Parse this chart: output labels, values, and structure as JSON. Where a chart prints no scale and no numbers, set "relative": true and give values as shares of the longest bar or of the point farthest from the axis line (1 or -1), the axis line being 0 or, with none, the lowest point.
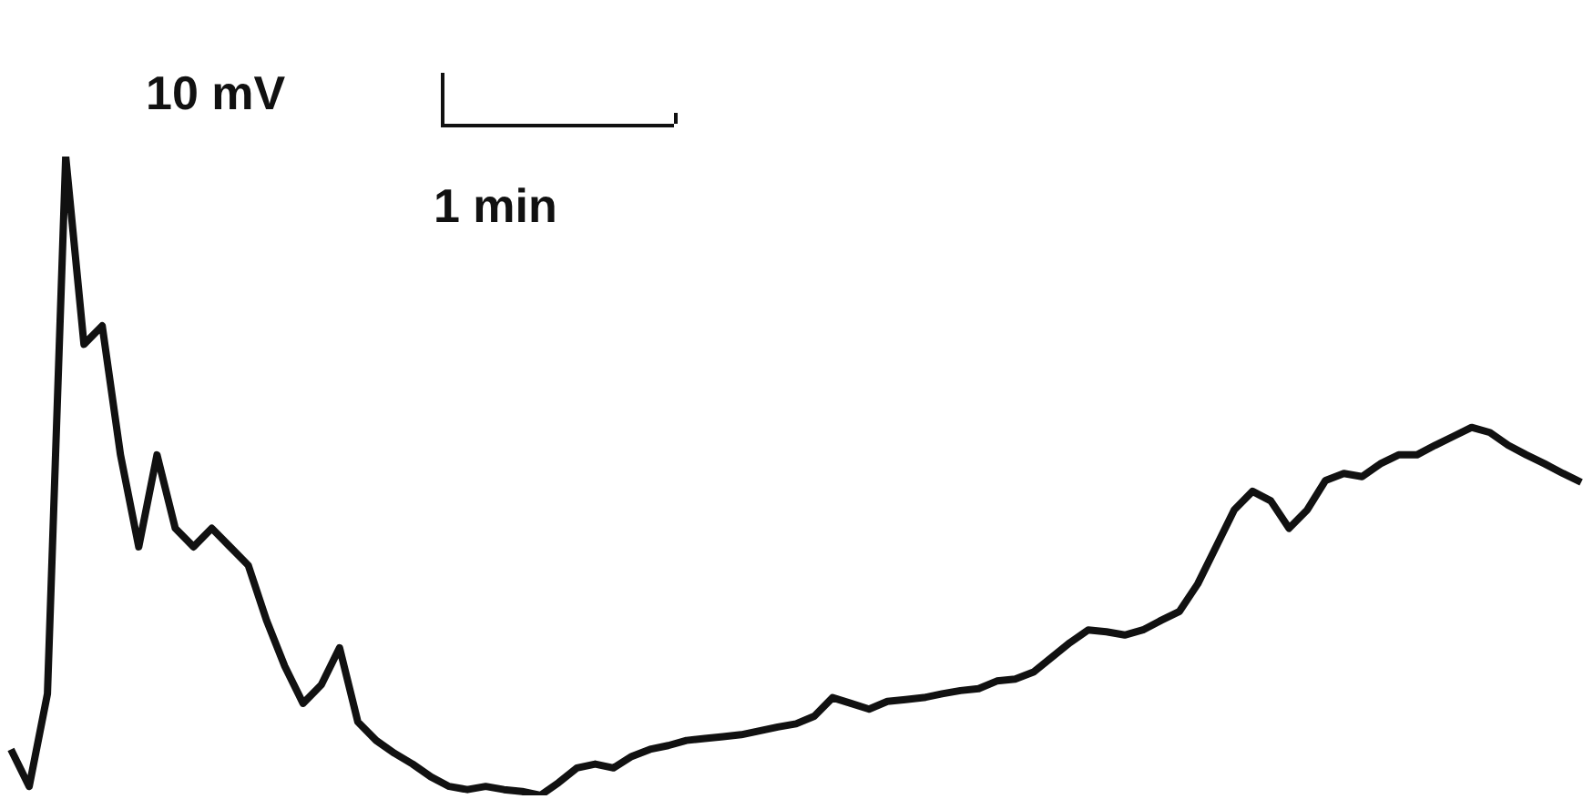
{
  "chart_data": {
    "type": "line",
    "relative": true,
    "color": "#111111",
    "annotations": [
      "10 mV",
      "1 min"
    ],
    "categories": [
      null,
      null,
      null,
      null,
      null,
      null,
      null,
      null,
      null,
      null,
      null,
      null,
      null,
      null,
      null,
      null,
      null,
      null,
      null,
      null,
      null,
      null,
      null,
      null,
      null,
      null,
      null,
      null,
      null,
      null,
      null,
      null,
      null,
      null,
      null,
      null,
      null,
      null,
      null,
      null,
      null,
      null,
      null,
      null,
      null,
      null,
      null,
      null,
      null,
      null,
      null,
      null,
      null,
      null,
      null,
      null,
      null,
      null,
      null,
      null,
      null,
      null,
      null,
      null,
      null,
      null,
      null,
      null,
      null,
      null,
      null,
      null,
      null,
      null,
      null,
      null,
      null,
      null,
      null,
      null,
      null,
      null,
      null,
      null,
      null,
      null,
      null
    ],
    "values": [
      0.072,
      0.014,
      0.159,
      1.0,
      0.706,
      0.735,
      0.533,
      0.389,
      0.533,
      0.418,
      0.389,
      0.418,
      0.389,
      0.36,
      0.274,
      0.202,
      0.144,
      0.173,
      0.231,
      0.115,
      0.086,
      0.066,
      0.049,
      0.029,
      0.014,
      0.009,
      0.014,
      0.009,
      0.006,
      0,
      0.02,
      0.043,
      0.049,
      0.043,
      0.061,
      0.072,
      0.078,
      0.086,
      0.089,
      0.092,
      0.095,
      0.101,
      0.107,
      0.112,
      0.124,
      0.153,
      0.144,
      0.135,
      0.147,
      0.15,
      0.153,
      0.159,
      0.164,
      0.167,
      0.179,
      0.182,
      0.193,
      0.216,
      0.239,
      0.259,
      0.256,
      0.251,
      0.259,
      0.274,
      0.288,
      0.331,
      0.389,
      0.447,
      0.476,
      0.461,
      0.418,
      0.447,
      0.493,
      0.504,
      0.499,
      0.519,
      0.533,
      0.533,
      0.548,
      0.562,
      0.576,
      0.568,
      0.548,
      0.533,
      0.519,
      0.504,
      0.49
    ]
  }
}
